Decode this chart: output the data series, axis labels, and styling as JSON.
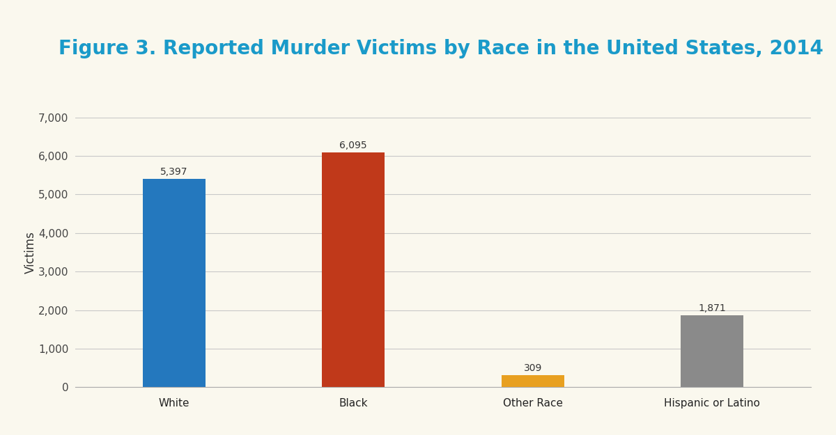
{
  "title": "Figure 3. Reported Murder Victims by Race in the United States, 2014",
  "categories": [
    "White",
    "Black",
    "Other Race",
    "Hispanic or Latino"
  ],
  "values": [
    5397,
    6095,
    309,
    1871
  ],
  "bar_colors": [
    "#2478BE",
    "#C0391A",
    "#E8A020",
    "#8A8A8A"
  ],
  "ylabel": "Victims",
  "ylim": [
    0,
    7000
  ],
  "yticks": [
    0,
    1000,
    2000,
    3000,
    4000,
    5000,
    6000,
    7000
  ],
  "background_color": "#FAF8EE",
  "title_color": "#1A9AC9",
  "title_fontsize": 20,
  "label_fontsize": 11,
  "ylabel_fontsize": 12,
  "annotation_fontsize": 10,
  "grid_color": "#C8C8C8",
  "bar_width": 0.35
}
